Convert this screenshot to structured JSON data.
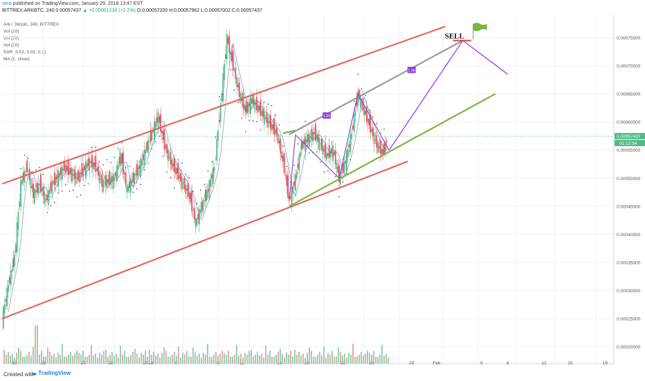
{
  "header": {
    "author": "sera",
    "published_text": "published on TradingView.com, January 29, 2018 13:47 EST",
    "symbol_line": "BITTREX:ARKBTC, 240  0.00057437",
    "change": "▲ +0.00001236 (+2.2%)",
    "ohlc": "O:0.00057200  H:0.00057962  L:0.00057002  C:0.00057437"
  },
  "legend": [
    "Ark / Bitcoin, 240, BITTREX",
    "Vol (20)",
    "Vol (20)",
    "Vol (20)",
    "SAR (0.02, 0.02, 0.2)",
    "MA (9, close)"
  ],
  "footer": {
    "created_with": "Created with",
    "brand": "TradingView"
  },
  "chart_data": {
    "type": "candlestick",
    "y_axis": {
      "min": 0.00017,
      "max": 0.00079,
      "ticks": [
        "0.00075000",
        "0.00070000",
        "0.00065000",
        "0.00060000",
        "0.00055000",
        "0.00050000",
        "0.00045000",
        "0.00040000",
        "0.00035000",
        "0.00030000",
        "0.00025000",
        "0.00020000"
      ]
    },
    "x_axis": {
      "ticks": [
        "18",
        "21",
        "25",
        "28",
        "2018",
        "4",
        "8",
        "11",
        "15",
        "18",
        "22",
        "25",
        "29",
        "Feb",
        "5",
        "8",
        "12",
        "15",
        "19"
      ]
    },
    "last_price": "0.00057437",
    "countdown": "01:12:54",
    "price_path": [
      [
        0,
        0.00025
      ],
      [
        0.5,
        0.00031
      ],
      [
        1.0,
        0.00036
      ],
      [
        1.5,
        0.00049
      ],
      [
        2.0,
        0.00052
      ],
      [
        2.5,
        0.00047
      ],
      [
        3.0,
        0.00049
      ],
      [
        3.5,
        0.00046
      ],
      [
        4.0,
        0.00049
      ],
      [
        5.0,
        0.00052
      ],
      [
        6.0,
        0.0005
      ],
      [
        7.0,
        0.00053
      ],
      [
        7.5,
        0.00052
      ],
      [
        8.0,
        0.00049
      ],
      [
        9.0,
        0.0005
      ],
      [
        9.5,
        0.00054
      ],
      [
        10.0,
        0.00048
      ],
      [
        11.0,
        0.00052
      ],
      [
        12.0,
        0.00058
      ],
      [
        12.5,
        0.00061
      ],
      [
        13.0,
        0.00056
      ],
      [
        13.5,
        0.00053
      ],
      [
        14.0,
        0.00051
      ],
      [
        15.0,
        0.00047
      ],
      [
        15.5,
        0.00042
      ],
      [
        16.0,
        0.00045
      ],
      [
        16.5,
        0.00048
      ],
      [
        17.0,
        0.00052
      ],
      [
        17.5,
        0.00063
      ],
      [
        18.0,
        0.00075
      ],
      [
        18.5,
        0.0007
      ],
      [
        19.0,
        0.00065
      ],
      [
        19.5,
        0.00062
      ],
      [
        20.0,
        0.00064
      ],
      [
        21.0,
        0.00061
      ],
      [
        22.0,
        0.00058
      ],
      [
        22.5,
        0.00053
      ],
      [
        23.0,
        0.00046
      ],
      [
        23.5,
        0.0005
      ],
      [
        24.0,
        0.00056
      ],
      [
        25.0,
        0.00058
      ],
      [
        25.5,
        0.00056
      ],
      [
        26.0,
        0.00054
      ],
      [
        26.5,
        0.00055
      ],
      [
        27.0,
        0.0005
      ],
      [
        27.5,
        0.00053
      ],
      [
        28.0,
        0.00058
      ],
      [
        28.5,
        0.00065
      ],
      [
        29.0,
        0.00062
      ],
      [
        29.5,
        0.00059
      ],
      [
        30.0,
        0.00056
      ],
      [
        30.5,
        0.000545
      ],
      [
        30.9,
        0.00057437
      ]
    ],
    "drawings": {
      "red_channel_upper": [
        [
          0,
          0.00049
        ],
        [
          35.5,
          0.00077
        ]
      ],
      "red_channel_lower": [
        [
          0,
          0.00025
        ],
        [
          32.5,
          0.00053
        ]
      ],
      "green_trend_support": [
        [
          23.0,
          0.00045
        ],
        [
          39.5,
          0.00065
        ]
      ],
      "green_short_top": [
        [
          22.5,
          0.00058
        ],
        [
          23.5,
          0.000585
        ]
      ],
      "gray_channel_upper": [
        [
          23.0,
          0.000578
        ],
        [
          36.9,
          0.000745
        ]
      ],
      "projection": [
        [
          31.0,
          0.00055
        ],
        [
          36.9,
          0.000745
        ],
        [
          40.5,
          0.000685
        ]
      ],
      "pattern_lines": [
        [
          23.0,
          0.00046
        ],
        [
          23.5,
          0.000577
        ],
        [
          27.0,
          0.0005
        ],
        [
          28.5,
          0.00065
        ],
        [
          31.0,
          0.00055
        ]
      ],
      "labels": [
        {
          "text": "1.96",
          "x": 26.0,
          "y": 0.000611
        },
        {
          "text": "1.96",
          "x": 32.8,
          "y": 0.000692
        }
      ],
      "sell_text": "SELL",
      "sell_point": [
        36.9,
        0.000745
      ]
    }
  }
}
